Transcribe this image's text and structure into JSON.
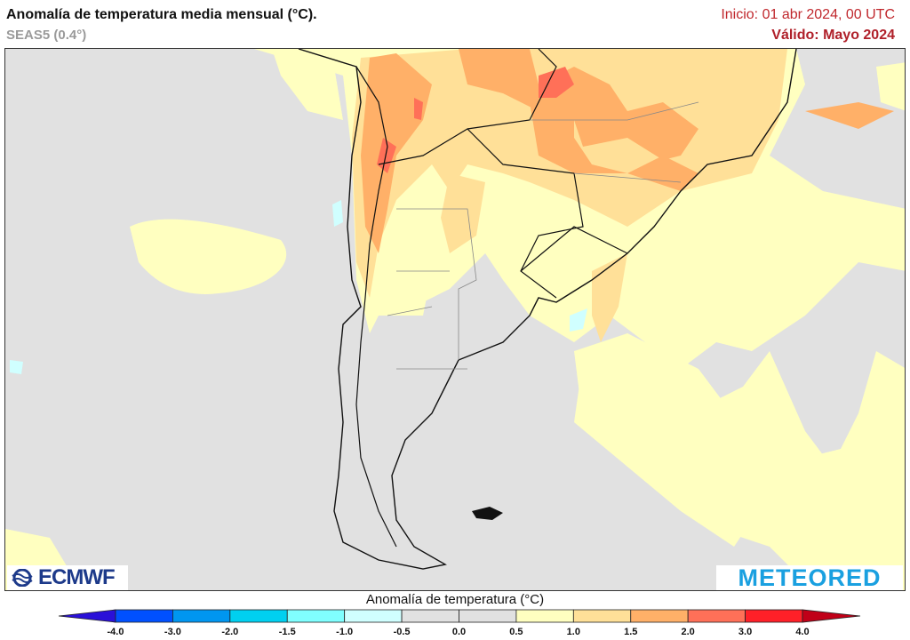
{
  "header": {
    "title": "Anomalía de temperatura media mensual (°C).",
    "model": "SEAS5 (0.4°)",
    "init": "Inicio: 01 abr 2024, 00 UTC",
    "valid": "Válido: Mayo 2024"
  },
  "logos": {
    "left": "ECMWF",
    "right": "METEORED"
  },
  "colorbar": {
    "title": "Anomalía de temperatura (°C)",
    "ticks": [
      "-4.0",
      "-3.0",
      "-2.0",
      "-1.5",
      "-1.0",
      "-0.5",
      "0.0",
      "0.5",
      "1.0",
      "1.5",
      "2.0",
      "3.0",
      "4.0"
    ],
    "under_color": "#2a10d8",
    "colors": [
      "#0050ff",
      "#0096f0",
      "#00d0f0",
      "#80ffff",
      "#d0ffff",
      "#e1e1e1",
      "#e1e1e1",
      "#ffffc0",
      "#ffe098",
      "#ffb068",
      "#ff7058",
      "#ff2028"
    ],
    "over_color": "#c00018"
  },
  "map": {
    "region": "South America (southern cone)",
    "background_color": "#e1e1e1"
  }
}
